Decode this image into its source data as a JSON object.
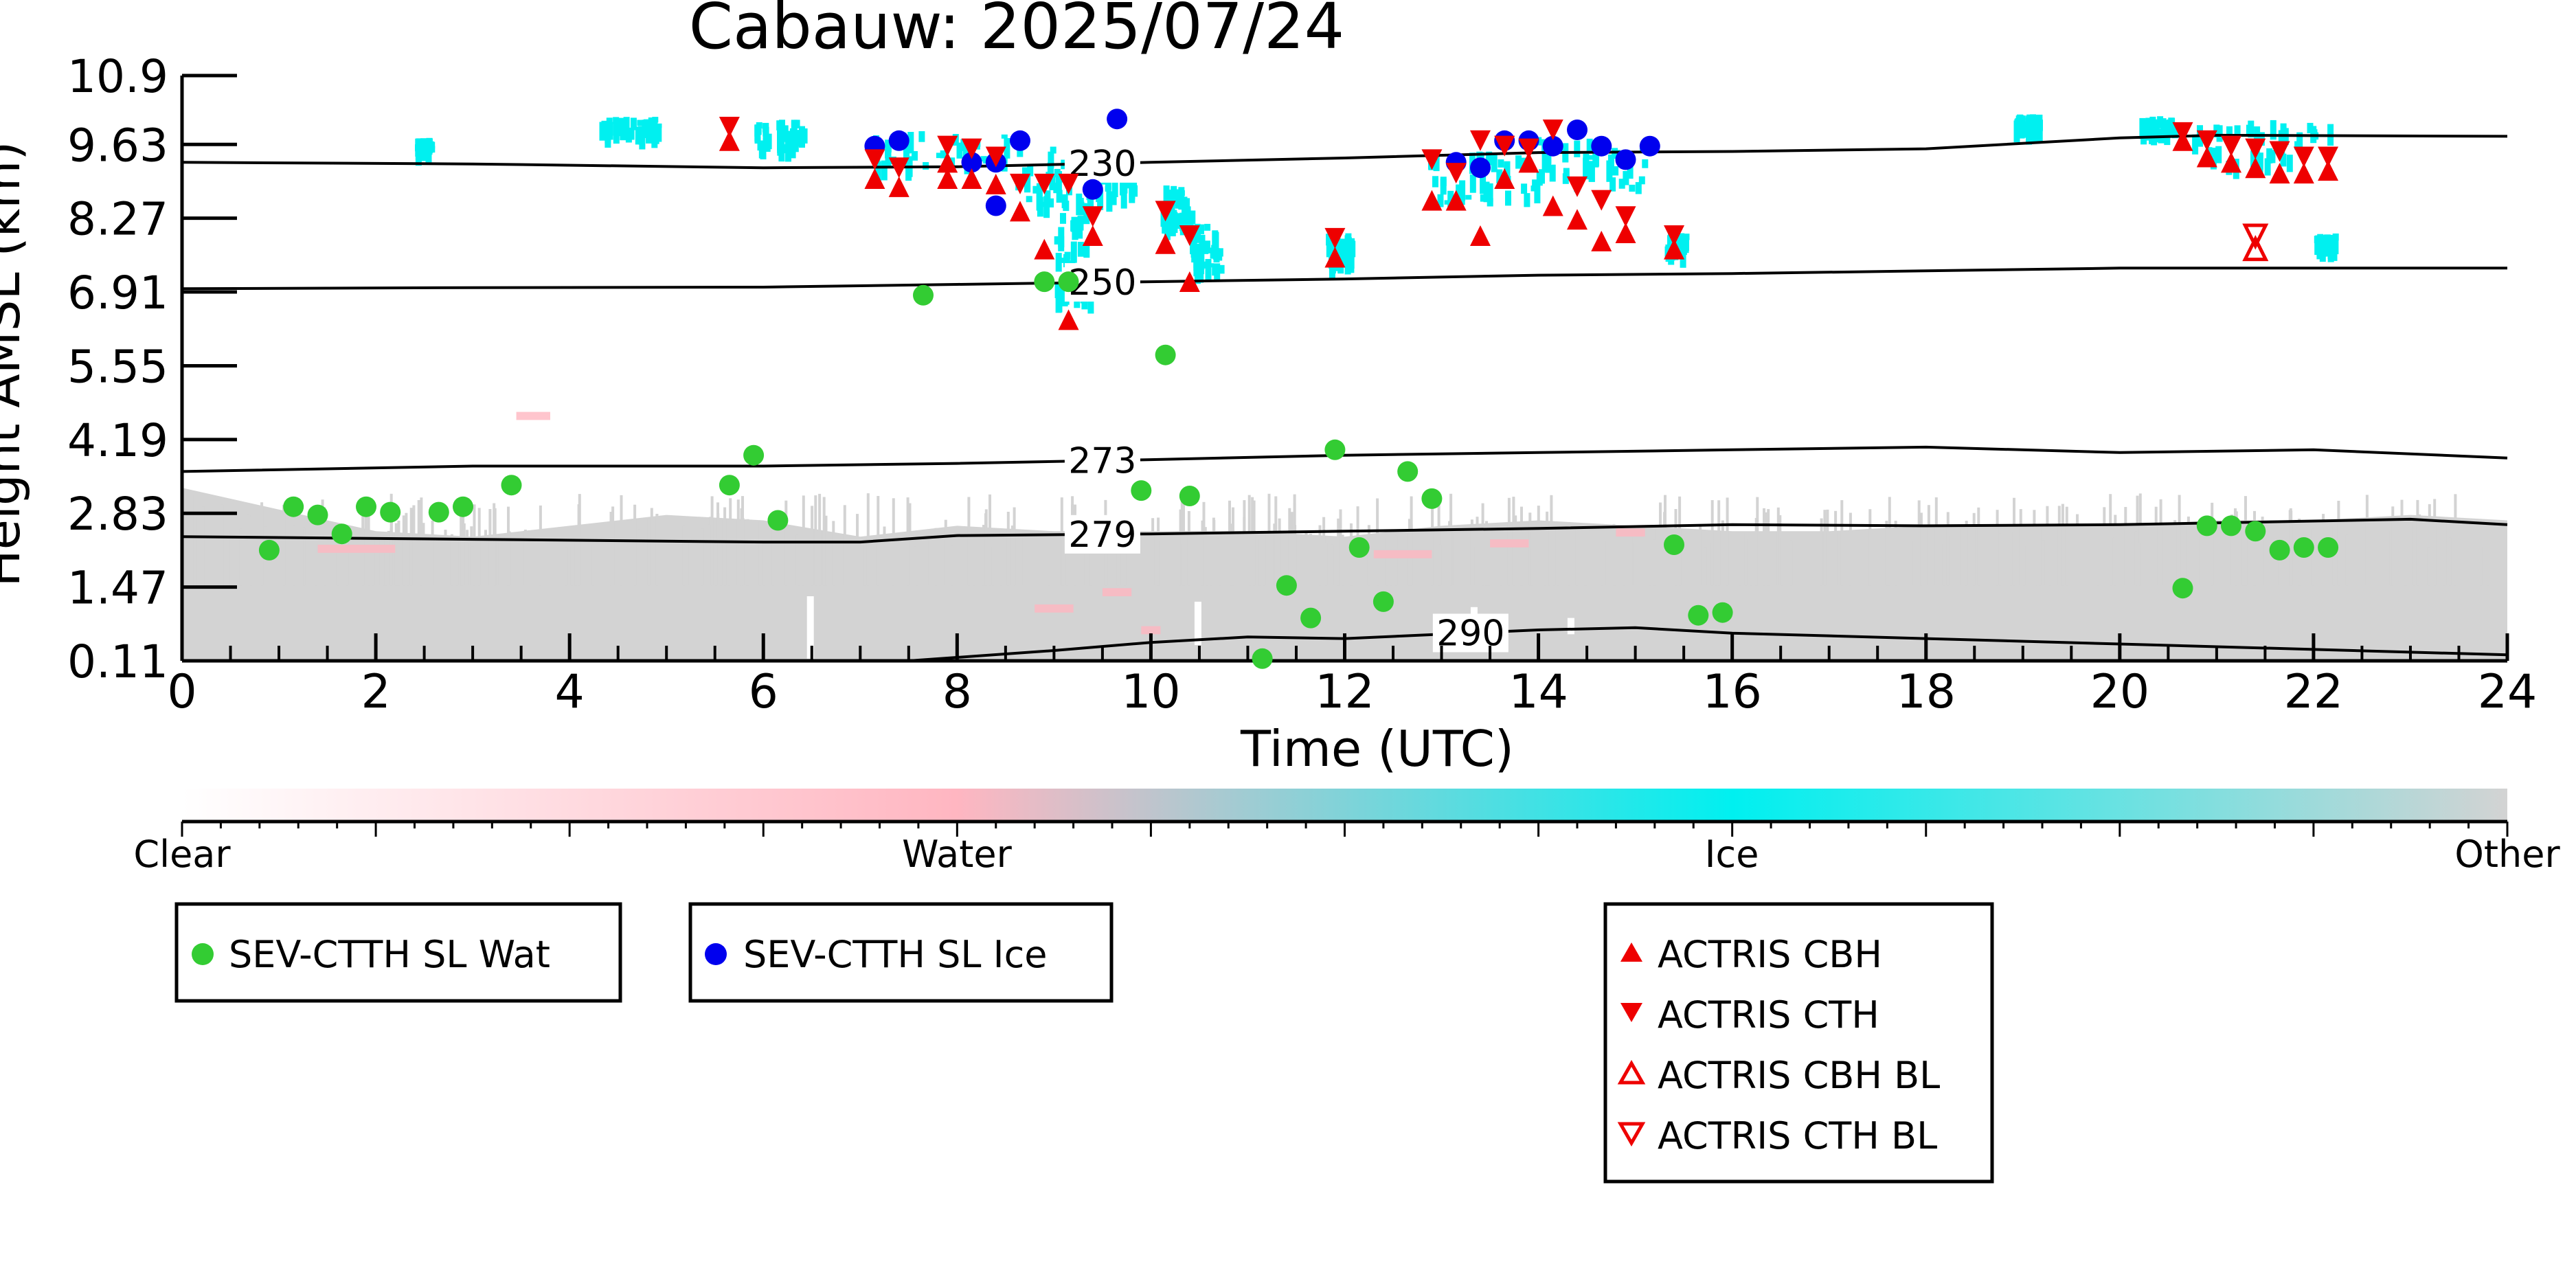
{
  "chart_data": {
    "type": "scatter",
    "title": "Cabauw: 2025/07/24",
    "xlabel": "Time (UTC)",
    "ylabel": "Height AMSL (km)",
    "xlim": [
      0,
      24
    ],
    "ylim": [
      0.11,
      10.9
    ],
    "x_ticks": [
      "0",
      "2",
      "4",
      "6",
      "8",
      "10",
      "12",
      "14",
      "16",
      "18",
      "20",
      "22",
      "24"
    ],
    "y_ticks": [
      "0.11",
      "1.47",
      "2.83",
      "4.19",
      "5.55",
      "6.91",
      "8.27",
      "9.63",
      "10.9"
    ],
    "grid": false,
    "legend": "below",
    "colorbar": {
      "labels": [
        "Clear",
        "Water",
        "Ice",
        "Other"
      ],
      "colors": [
        "#ffffff",
        "#ffb6c1",
        "#00f0f0",
        "#d3d3d3"
      ]
    },
    "isotherms": [
      {
        "label": "230",
        "label_x": 9.5,
        "points": [
          [
            0,
            9.3
          ],
          [
            3,
            9.27
          ],
          [
            6,
            9.2
          ],
          [
            8,
            9.22
          ],
          [
            10,
            9.3
          ],
          [
            12,
            9.38
          ],
          [
            14,
            9.48
          ],
          [
            16,
            9.5
          ],
          [
            18,
            9.55
          ],
          [
            20,
            9.75
          ],
          [
            21,
            9.8
          ],
          [
            24,
            9.78
          ]
        ]
      },
      {
        "label": "250",
        "label_x": 9.5,
        "points": [
          [
            0,
            6.97
          ],
          [
            3,
            6.99
          ],
          [
            6,
            7.0
          ],
          [
            8,
            7.05
          ],
          [
            10,
            7.1
          ],
          [
            12,
            7.15
          ],
          [
            14,
            7.22
          ],
          [
            16,
            7.25
          ],
          [
            18,
            7.3
          ],
          [
            20,
            7.35
          ],
          [
            22,
            7.35
          ],
          [
            24,
            7.35
          ]
        ]
      },
      {
        "label": "273",
        "label_x": 9.5,
        "points": [
          [
            0,
            3.6
          ],
          [
            3,
            3.7
          ],
          [
            6,
            3.7
          ],
          [
            8,
            3.75
          ],
          [
            10,
            3.82
          ],
          [
            12,
            3.9
          ],
          [
            14,
            3.95
          ],
          [
            16,
            4.0
          ],
          [
            18,
            4.05
          ],
          [
            20,
            3.95
          ],
          [
            22,
            4.0
          ],
          [
            24,
            3.85
          ]
        ]
      },
      {
        "label": "279",
        "label_x": 9.5,
        "points": [
          [
            0,
            2.4
          ],
          [
            3,
            2.35
          ],
          [
            6,
            2.3
          ],
          [
            7,
            2.3
          ],
          [
            8,
            2.42
          ],
          [
            10,
            2.45
          ],
          [
            12,
            2.5
          ],
          [
            14,
            2.55
          ],
          [
            16,
            2.62
          ],
          [
            18,
            2.6
          ],
          [
            20,
            2.62
          ],
          [
            23,
            2.72
          ],
          [
            24,
            2.62
          ]
        ]
      },
      {
        "label": "290",
        "label_x": 13.3,
        "points": [
          [
            7.5,
            0.11
          ],
          [
            9,
            0.3
          ],
          [
            10,
            0.45
          ],
          [
            11,
            0.55
          ],
          [
            12,
            0.52
          ],
          [
            13,
            0.6
          ],
          [
            14,
            0.68
          ],
          [
            15,
            0.72
          ],
          [
            16,
            0.62
          ],
          [
            18,
            0.52
          ],
          [
            20,
            0.42
          ],
          [
            22,
            0.32
          ],
          [
            24,
            0.22
          ]
        ]
      }
    ],
    "series": [
      {
        "name": "SEV-CTTH SL Wat",
        "marker": "circle",
        "color": "#33cc33",
        "points": [
          [
            0.9,
            2.15
          ],
          [
            1.15,
            2.95
          ],
          [
            1.4,
            2.8
          ],
          [
            1.65,
            2.45
          ],
          [
            1.9,
            2.95
          ],
          [
            2.15,
            2.85
          ],
          [
            2.65,
            2.85
          ],
          [
            2.9,
            2.95
          ],
          [
            3.4,
            3.35
          ],
          [
            5.65,
            3.35
          ],
          [
            5.9,
            3.9
          ],
          [
            6.15,
            2.7
          ],
          [
            7.65,
            6.85
          ],
          [
            8.9,
            7.1
          ],
          [
            9.15,
            7.1
          ],
          [
            9.9,
            3.25
          ],
          [
            10.15,
            5.75
          ],
          [
            10.4,
            3.15
          ],
          [
            11.15,
            0.15
          ],
          [
            11.4,
            1.5
          ],
          [
            11.65,
            0.9
          ],
          [
            11.9,
            4.0
          ],
          [
            12.15,
            2.2
          ],
          [
            12.4,
            1.2
          ],
          [
            12.65,
            3.6
          ],
          [
            12.9,
            3.1
          ],
          [
            15.4,
            2.25
          ],
          [
            15.65,
            0.95
          ],
          [
            15.9,
            1.0
          ],
          [
            20.65,
            1.45
          ],
          [
            20.9,
            2.6
          ],
          [
            21.15,
            2.6
          ],
          [
            21.4,
            2.5
          ],
          [
            21.65,
            2.15
          ],
          [
            21.9,
            2.2
          ],
          [
            22.15,
            2.2
          ]
        ]
      },
      {
        "name": "SEV-CTTH SL Ice",
        "marker": "circle",
        "color": "#0000ee",
        "points": [
          [
            7.15,
            9.6
          ],
          [
            7.4,
            9.7
          ],
          [
            8.15,
            9.3
          ],
          [
            8.4,
            9.3
          ],
          [
            8.4,
            8.5
          ],
          [
            8.65,
            9.7
          ],
          [
            9.4,
            8.8
          ],
          [
            9.65,
            10.1
          ],
          [
            13.15,
            9.3
          ],
          [
            13.4,
            9.2
          ],
          [
            13.65,
            9.7
          ],
          [
            13.9,
            9.7
          ],
          [
            14.15,
            9.6
          ],
          [
            14.4,
            9.9
          ],
          [
            14.65,
            9.6
          ],
          [
            14.9,
            9.35
          ],
          [
            15.15,
            9.6
          ]
        ]
      },
      {
        "name": "ACTRIS CBH",
        "marker": "triangle-up",
        "color": "#ee0000",
        "filled": true,
        "points": [
          [
            5.65,
            9.7
          ],
          [
            7.15,
            9.0
          ],
          [
            7.4,
            8.85
          ],
          [
            7.9,
            9.3
          ],
          [
            7.9,
            9.0
          ],
          [
            8.15,
            9.0
          ],
          [
            8.4,
            8.9
          ],
          [
            8.65,
            8.4
          ],
          [
            8.9,
            7.7
          ],
          [
            9.15,
            6.4
          ],
          [
            9.4,
            7.95
          ],
          [
            10.15,
            7.8
          ],
          [
            10.4,
            7.1
          ],
          [
            11.9,
            7.55
          ],
          [
            12.9,
            8.6
          ],
          [
            13.15,
            8.6
          ],
          [
            13.4,
            7.95
          ],
          [
            13.65,
            9.0
          ],
          [
            13.9,
            9.3
          ],
          [
            14.15,
            8.5
          ],
          [
            14.4,
            8.25
          ],
          [
            14.65,
            7.85
          ],
          [
            14.9,
            8.0
          ],
          [
            15.4,
            7.7
          ],
          [
            20.65,
            9.7
          ],
          [
            20.9,
            9.4
          ],
          [
            21.15,
            9.3
          ],
          [
            21.4,
            9.2
          ],
          [
            21.65,
            9.1
          ],
          [
            21.9,
            9.1
          ],
          [
            22.15,
            9.15
          ]
        ]
      },
      {
        "name": "ACTRIS CTH",
        "marker": "triangle-down",
        "color": "#ee0000",
        "filled": true,
        "points": [
          [
            5.65,
            9.95
          ],
          [
            7.15,
            9.35
          ],
          [
            7.4,
            9.2
          ],
          [
            7.9,
            9.6
          ],
          [
            8.15,
            9.55
          ],
          [
            8.4,
            9.4
          ],
          [
            8.65,
            8.9
          ],
          [
            8.9,
            8.9
          ],
          [
            9.15,
            8.9
          ],
          [
            9.4,
            8.3
          ],
          [
            10.15,
            8.4
          ],
          [
            10.4,
            7.95
          ],
          [
            11.9,
            7.9
          ],
          [
            12.9,
            9.35
          ],
          [
            13.15,
            9.1
          ],
          [
            13.4,
            9.7
          ],
          [
            13.65,
            9.6
          ],
          [
            13.9,
            9.55
          ],
          [
            14.15,
            9.9
          ],
          [
            14.4,
            8.85
          ],
          [
            14.65,
            8.6
          ],
          [
            14.9,
            8.3
          ],
          [
            15.4,
            7.95
          ],
          [
            20.65,
            9.85
          ],
          [
            20.9,
            9.7
          ],
          [
            21.15,
            9.6
          ],
          [
            21.4,
            9.55
          ],
          [
            21.65,
            9.5
          ],
          [
            21.9,
            9.4
          ],
          [
            22.15,
            9.4
          ]
        ]
      },
      {
        "name": "ACTRIS CBH BL",
        "marker": "triangle-up",
        "color": "#ee0000",
        "filled": false,
        "points": [
          [
            21.4,
            7.7
          ]
        ]
      },
      {
        "name": "ACTRIS CTH BL",
        "marker": "triangle-down",
        "color": "#ee0000",
        "filled": false,
        "points": [
          [
            21.4,
            7.95
          ]
        ]
      }
    ]
  }
}
